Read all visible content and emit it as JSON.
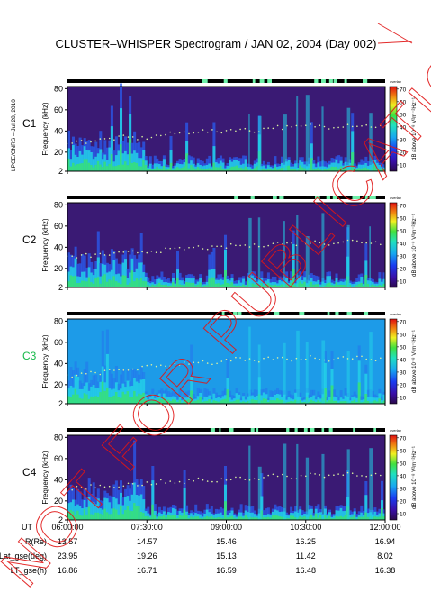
{
  "page": {
    "title": "CLUSTER–WHISPER Spectrogram / JAN 02, 2004 (Day 002)",
    "side_credit": "LPCE/CNRS – Jul 28, 2010",
    "watermark": "NOT FOR PUBLICATION"
  },
  "colors": {
    "spectrogram_background": "#3a1a74",
    "c3_background": "#1d9be8",
    "c3_label": "#17b94a",
    "status_bar": "#000000",
    "status_highlight": "#6df0a8",
    "watermark": "#e01515",
    "noise_cyan": "#22d2e8",
    "noise_green": "#36e07a",
    "noise_blue": "#2a5cf0"
  },
  "chart_data": [
    {
      "type": "heatmap",
      "name": "C1",
      "ylabel": "Frequency (kHz)",
      "y_ticks": [
        2,
        20,
        40,
        60,
        80
      ],
      "ylim": [
        2,
        82
      ],
      "x_ticks": [
        "06:00:00",
        "07:30:00",
        "09:00:00",
        "10:30:00",
        "12:00:00"
      ],
      "colorbar": {
        "label": "dB above 10⁻⁸ V²m⁻²Hz⁻¹",
        "ticks": [
          10,
          20,
          30,
          40,
          50,
          60,
          70
        ],
        "range": [
          5,
          72
        ],
        "tag": "overlay"
      },
      "plasma_line_khz": [
        30,
        30,
        32,
        34,
        33,
        36,
        38,
        40,
        39,
        42,
        40,
        44,
        43,
        45,
        44,
        46,
        45,
        44
      ]
    },
    {
      "type": "heatmap",
      "name": "C2",
      "ylabel": "Frequency (kHz)",
      "y_ticks": [
        2,
        20,
        40,
        60,
        80
      ],
      "ylim": [
        2,
        82
      ],
      "x_ticks": [
        "06:00:00",
        "07:30:00",
        "09:00:00",
        "10:30:00",
        "12:00:00"
      ],
      "colorbar": {
        "label": "dB above 10⁻⁸ V²m⁻²Hz⁻¹",
        "ticks": [
          10,
          20,
          30,
          40,
          50,
          60,
          70
        ],
        "range": [
          5,
          72
        ],
        "tag": "overlay"
      },
      "plasma_line_khz": [
        30,
        32,
        33,
        34,
        36,
        37,
        38,
        40,
        39,
        42,
        41,
        44,
        43,
        45,
        44,
        46,
        45,
        44
      ]
    },
    {
      "type": "heatmap",
      "name": "C3",
      "ylabel": "Frequency (kHz)",
      "y_ticks": [
        2,
        20,
        40,
        60,
        80
      ],
      "ylim": [
        2,
        82
      ],
      "x_ticks": [
        "06:00:00",
        "07:30:00",
        "09:00:00",
        "10:30:00",
        "12:00:00"
      ],
      "colorbar": {
        "label": "dB above 10⁻⁸ V²m⁻²Hz⁻¹",
        "ticks": [
          10,
          20,
          30,
          40,
          50,
          60,
          70
        ],
        "range": [
          5,
          72
        ],
        "tag": "overlay"
      },
      "plasma_line_khz": [
        28,
        30,
        32,
        34,
        36,
        38,
        40,
        42,
        40,
        44,
        42,
        45,
        44,
        46,
        44,
        46,
        45,
        44
      ]
    },
    {
      "type": "heatmap",
      "name": "C4",
      "ylabel": "Frequency (kHz)",
      "y_ticks": [
        2,
        20,
        40,
        60,
        80
      ],
      "ylim": [
        2,
        82
      ],
      "x_ticks": [
        "06:00:00",
        "07:30:00",
        "09:00:00",
        "10:30:00",
        "12:00:00"
      ],
      "colorbar": {
        "label": "dB above 10⁻⁸ V²m⁻²Hz⁻¹",
        "ticks": [
          10,
          20,
          30,
          40,
          50,
          60,
          70
        ],
        "range": [
          5,
          72
        ],
        "tag": "overlay"
      },
      "plasma_line_khz": [
        32,
        33,
        34,
        35,
        36,
        38,
        37,
        40,
        39,
        42,
        41,
        44,
        42,
        45,
        44,
        46,
        45,
        44
      ]
    }
  ],
  "ephemeris": {
    "rows": [
      {
        "label": "UT",
        "values": [
          "06:00:00",
          "07:30:00",
          "09:00:00",
          "10:30:00",
          "12:00:00"
        ]
      },
      {
        "label": "R(Re)",
        "values": [
          "13.57",
          "14.57",
          "15.46",
          "16.25",
          "16.94"
        ]
      },
      {
        "label": "Lat_gse(deg)",
        "values": [
          "23.95",
          "19.26",
          "15.13",
          "11.42",
          "8.02"
        ]
      },
      {
        "label": "LT_gse(h)",
        "values": [
          "16.86",
          "16.71",
          "16.59",
          "16.48",
          "16.38"
        ]
      }
    ]
  }
}
